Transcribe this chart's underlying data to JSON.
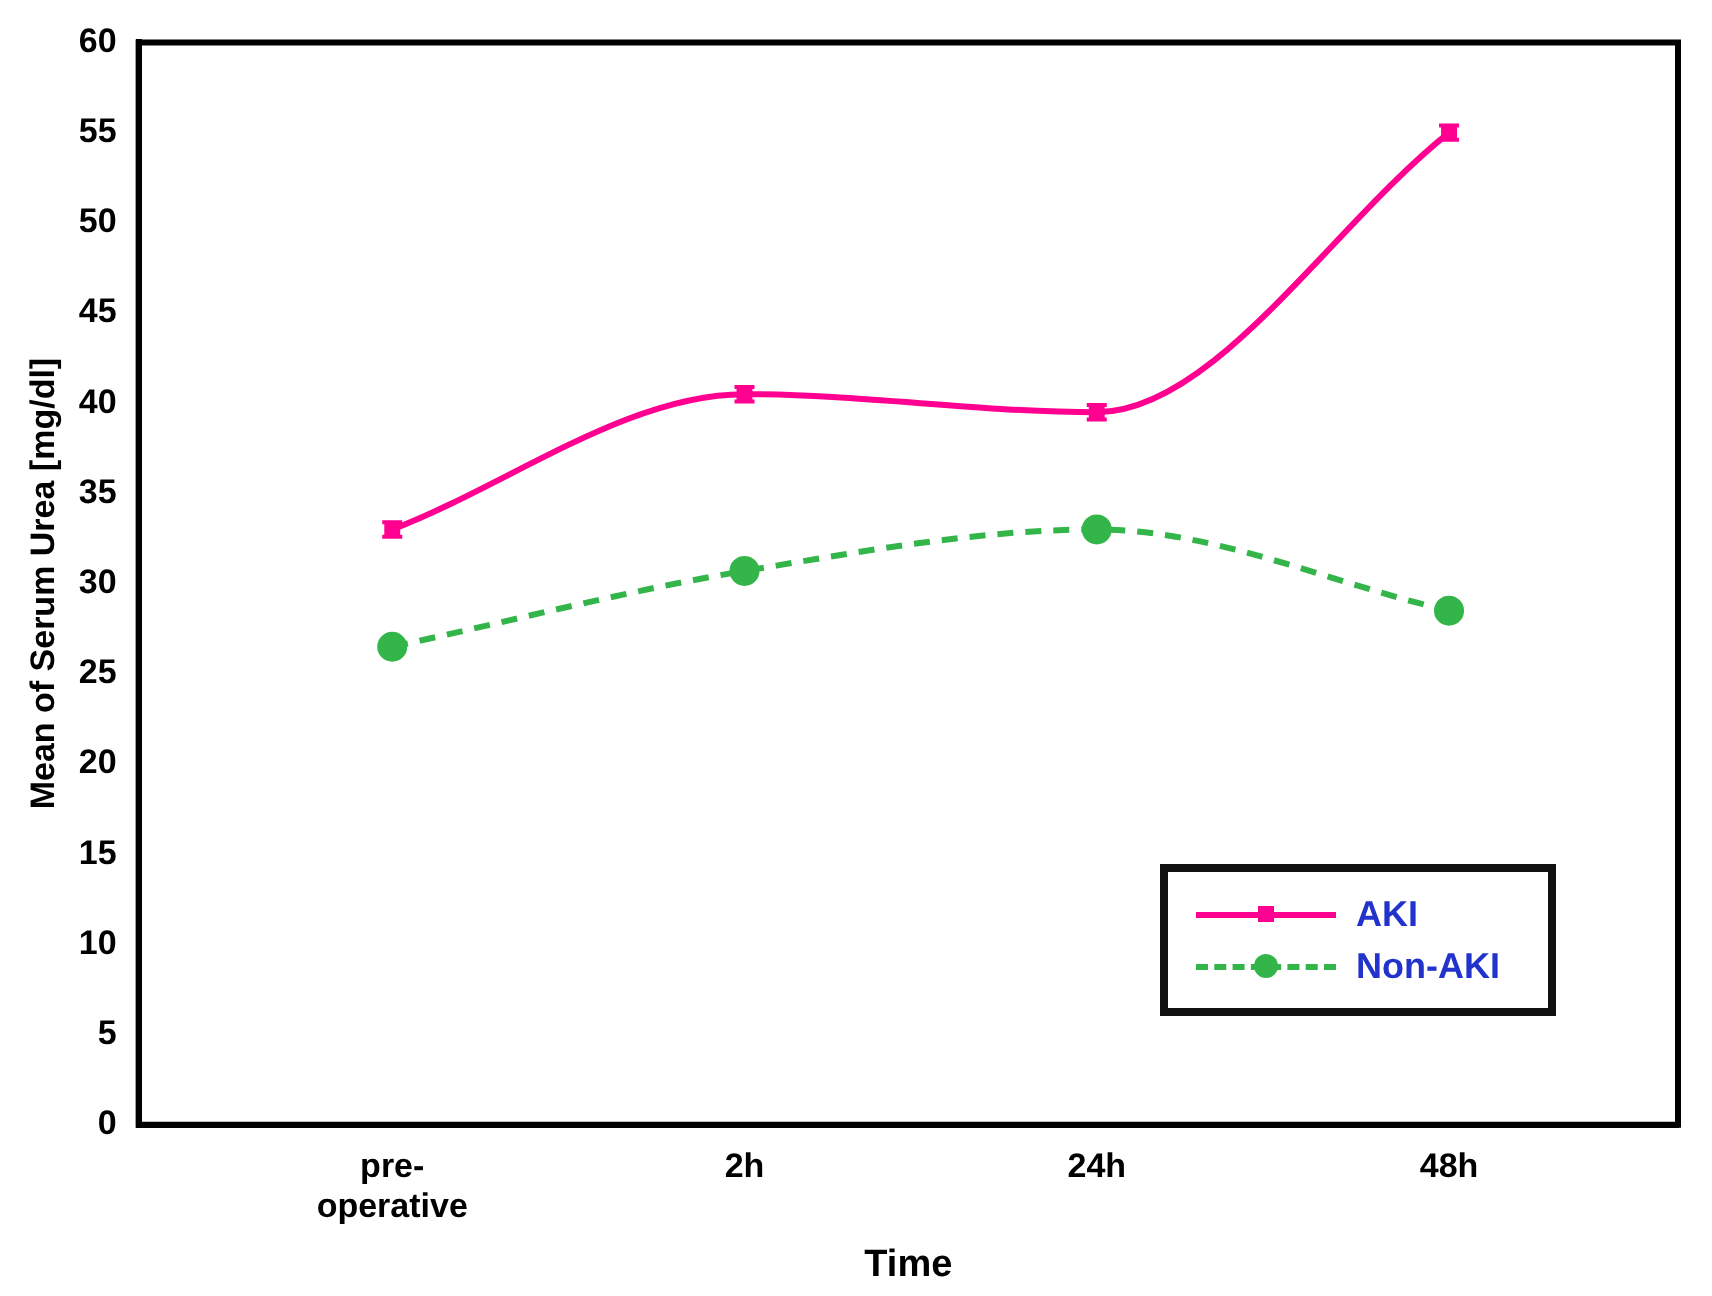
{
  "chart_data": {
    "type": "line",
    "xlabel": "Time",
    "ylabel": "Mean of Serum Urea [mg/dl]",
    "categories": [
      "pre-operative",
      "2h",
      "24h",
      "48h"
    ],
    "series": [
      {
        "name": "AKI",
        "color": "#ff0090",
        "values": [
          33,
          40.5,
          39.5,
          55
        ],
        "errors": [
          0.4,
          0.4,
          0.4,
          0.4
        ],
        "line_style": "solid",
        "marker": "square"
      },
      {
        "name": "Non-AKI",
        "color": "#33b54a",
        "values": [
          26.5,
          30.7,
          33,
          28.5
        ],
        "line_style": "dashed",
        "marker": "circle"
      }
    ],
    "ylim": [
      0,
      60
    ],
    "yticks": [
      0,
      5,
      10,
      15,
      20,
      25,
      30,
      35,
      40,
      45,
      50,
      55,
      60
    ],
    "grid": false,
    "legend": "bottom right"
  }
}
